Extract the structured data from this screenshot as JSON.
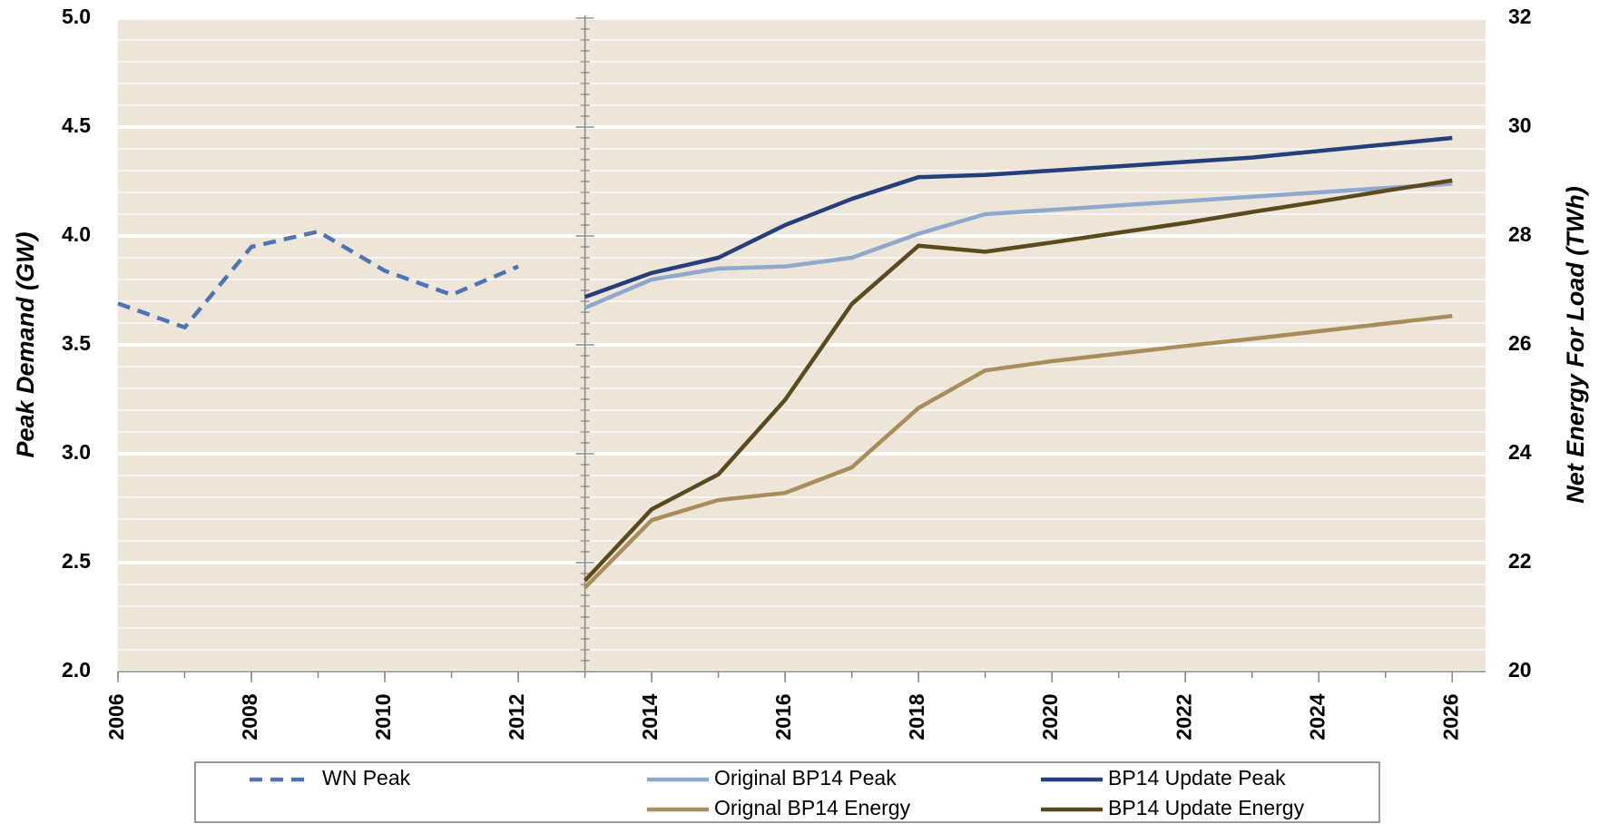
{
  "chart_data": {
    "type": "line",
    "x": [
      2006,
      2007,
      2008,
      2009,
      2010,
      2011,
      2012,
      2013,
      2014,
      2015,
      2016,
      2017,
      2018,
      2019,
      2020,
      2021,
      2022,
      2023,
      2024,
      2025,
      2026
    ],
    "xlim": [
      2006,
      2026.5
    ],
    "xticks": [
      2006,
      2008,
      2010,
      2012,
      2014,
      2016,
      2018,
      2020,
      2022,
      2024,
      2026
    ],
    "ylabel": "Peak Demand (GW)",
    "y2label": "Net Energy For Load (TWh)",
    "ylim": [
      2,
      5
    ],
    "yticks": [
      {
        "value": 2,
        "label": "2.0"
      },
      2.5,
      {
        "value": 3,
        "label": "3.0"
      },
      3.5,
      {
        "value": 4,
        "label": "4.0"
      },
      4.5,
      {
        "value": 5,
        "label": "5.0"
      }
    ],
    "y2lim": [
      20,
      32
    ],
    "y2ticks": [
      20,
      22,
      24,
      26,
      28,
      30,
      32
    ],
    "grid": true,
    "background": "#ede5d8",
    "series": [
      {
        "name": "WN Peak",
        "color": "#4f74b5",
        "dashed": true,
        "values": [
          3.69,
          3.58,
          3.95,
          4.02,
          3.84,
          3.73,
          3.86,
          null,
          null,
          null,
          null,
          null,
          null,
          null,
          null,
          null,
          null,
          null,
          null,
          null,
          null
        ]
      },
      {
        "name": "Original BP14 Peak",
        "color": "#8fa9cc",
        "values": [
          null,
          null,
          null,
          null,
          null,
          null,
          null,
          3.67,
          3.8,
          3.85,
          3.86,
          3.9,
          4.01,
          4.1,
          4.12,
          4.14,
          4.16,
          4.18,
          4.2,
          4.22,
          4.24
        ]
      },
      {
        "name": "BP14 Update Peak",
        "color": "#243f7a",
        "values": [
          null,
          null,
          null,
          null,
          null,
          null,
          null,
          3.72,
          3.83,
          3.9,
          4.05,
          4.17,
          4.27,
          4.28,
          4.3,
          4.32,
          4.34,
          4.36,
          4.39,
          4.42,
          4.45
        ]
      },
      {
        "name": "Orignal BP14 Energy",
        "color": "#a98e5c",
        "axis": "y2",
        "values": [
          null,
          null,
          null,
          null,
          null,
          null,
          null,
          21.54,
          22.78,
          23.15,
          23.28,
          23.75,
          24.84,
          25.53,
          25.7,
          25.84,
          25.98,
          26.11,
          26.25,
          26.39,
          26.53
        ]
      },
      {
        "name": "BP14 Update Energy",
        "color": "#5a4a1c",
        "axis": "y2",
        "values": [
          null,
          null,
          null,
          null,
          null,
          null,
          null,
          21.67,
          22.98,
          23.62,
          24.99,
          26.75,
          27.82,
          27.71,
          27.88,
          28.06,
          28.24,
          28.44,
          28.63,
          28.83,
          29.02
        ]
      }
    ]
  }
}
